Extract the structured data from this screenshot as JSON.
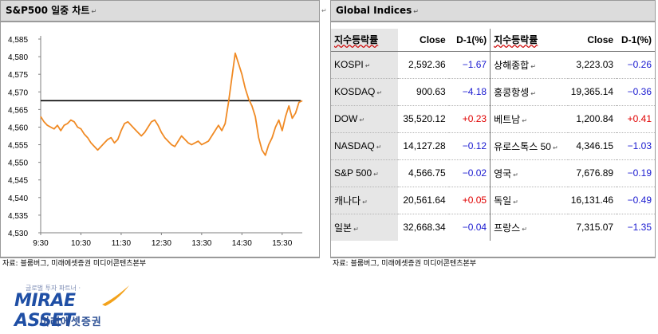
{
  "left_panel": {
    "title": "S&P500 일중 차트",
    "source": "자료: 블룸버그, 미래에셋증권 미디어콘텐츠본부"
  },
  "right_panel": {
    "title": "Global Indices",
    "source": "자료: 블룸버그, 미래에셋증권 미디어콘텐츠본부"
  },
  "table": {
    "headers": [
      "지수등락률",
      "Close",
      "D-1(%)",
      "지수등락률",
      "Close",
      "D-1(%)"
    ],
    "rows": [
      {
        "name1": "KOSPI",
        "close1": "2,592.36",
        "chg1": "−1.67",
        "dir1": "down",
        "name2": "상해종합",
        "close2": "3,223.03",
        "chg2": "−0.26",
        "dir2": "down"
      },
      {
        "name1": "KOSDAQ",
        "close1": "900.63",
        "chg1": "−4.18",
        "dir1": "down",
        "name2": "홍콩항셍",
        "close2": "19,365.14",
        "chg2": "−0.36",
        "dir2": "down"
      },
      {
        "name1": "DOW",
        "close1": "35,520.12",
        "chg1": "+0.23",
        "dir1": "up",
        "name2": "베트남",
        "close2": "1,200.84",
        "chg2": "+0.41",
        "dir2": "up"
      },
      {
        "name1": "NASDAQ",
        "close1": "14,127.28",
        "chg1": "−0.12",
        "dir1": "down",
        "name2": "유로스톡스 50",
        "close2": "4,346.15",
        "chg2": "−1.03",
        "dir2": "down"
      },
      {
        "name1": "S&P 500",
        "close1": "4,566.75",
        "chg1": "−0.02",
        "dir1": "down",
        "name2": "영국",
        "close2": "7,676.89",
        "chg2": "−0.19",
        "dir2": "down"
      },
      {
        "name1": "캐나다",
        "close1": "20,561.64",
        "chg1": "+0.05",
        "dir1": "up",
        "name2": "독일",
        "close2": "16,131.46",
        "chg2": "−0.49",
        "dir2": "down"
      },
      {
        "name1": "일본",
        "close1": "32,668.34",
        "chg1": "−0.04",
        "dir1": "down",
        "name2": "프랑스",
        "close2": "7,315.07",
        "chg2": "−1.35",
        "dir2": "down"
      }
    ]
  },
  "logo": {
    "tagline": "글로벌 투자 파트너 ·",
    "brand": "MIRAE ASSET",
    "brand_kr": "미래에셋증권"
  },
  "colors": {
    "line": "#f08a24",
    "up": "#e00000",
    "down": "#1a1ad0",
    "reference": "#000000"
  },
  "chart_data": {
    "type": "line",
    "title": "S&P500 일중 차트",
    "xlabel": "",
    "ylabel": "",
    "x_ticks": [
      "9:30",
      "10:30",
      "11:30",
      "12:30",
      "13:30",
      "14:30",
      "15:30"
    ],
    "y_ticks": [
      "4,530",
      "4,535",
      "4,540",
      "4,545",
      "4,550",
      "4,555",
      "4,560",
      "4,565",
      "4,570",
      "4,575",
      "4,580",
      "4,585"
    ],
    "ylim": [
      4530,
      4585
    ],
    "x_range_minutes": [
      0,
      390
    ],
    "reference_line": 4567.5,
    "series": [
      {
        "x": [
          0,
          5,
          10,
          15,
          20,
          25,
          30,
          35,
          40,
          45,
          50,
          55,
          60,
          65,
          70,
          75,
          80,
          85,
          90,
          95,
          100,
          105,
          110,
          115,
          120,
          125,
          130,
          135,
          140,
          145,
          150,
          155,
          160,
          165,
          170,
          175,
          180,
          185,
          190,
          195,
          200,
          205,
          210,
          215,
          220,
          225,
          230,
          235,
          240,
          245,
          250,
          255,
          260,
          265,
          270,
          275,
          280,
          285,
          290,
          295,
          300,
          305,
          310,
          315,
          320,
          325,
          330,
          335,
          340,
          345,
          350,
          355,
          360,
          365,
          370,
          375,
          380,
          385,
          390
        ],
        "values": [
          4563.0,
          4561.5,
          4560.5,
          4560.0,
          4559.5,
          4560.5,
          4559.0,
          4560.5,
          4561.0,
          4562.0,
          4561.5,
          4560.0,
          4559.5,
          4558.0,
          4557.0,
          4555.5,
          4554.5,
          4553.5,
          4554.5,
          4555.5,
          4556.5,
          4557.0,
          4555.5,
          4556.5,
          4559.0,
          4561.0,
          4561.5,
          4560.5,
          4559.5,
          4558.5,
          4557.5,
          4558.5,
          4560.0,
          4561.5,
          4562.0,
          4560.5,
          4558.5,
          4557.0,
          4556.0,
          4555.0,
          4554.5,
          4556.0,
          4557.5,
          4556.5,
          4555.5,
          4555.0,
          4555.5,
          4556.0,
          4555.0,
          4555.5,
          4556.0,
          4557.5,
          4559.0,
          4560.5,
          4559.0,
          4561.0,
          4567.0,
          4574.0,
          4581.0,
          4578.0,
          4575.0,
          4571.0,
          4568.0,
          4566.0,
          4563.0,
          4557.0,
          4553.5,
          4552.0,
          4555.0,
          4557.0,
          4560.0,
          4562.0,
          4559.0,
          4563.0,
          4566.0,
          4562.5,
          4564.0,
          4567.0,
          4567.5
        ]
      }
    ],
    "grid": false
  }
}
